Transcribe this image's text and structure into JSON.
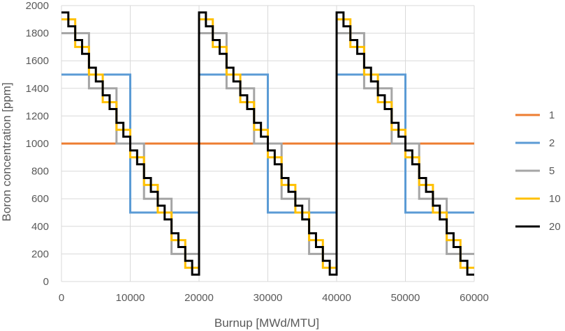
{
  "chart_data": {
    "type": "line",
    "title": "",
    "xlabel": "Burnup [MWd/MTU]",
    "ylabel": "Boron concentration [ppm]",
    "xlim": [
      0,
      60000
    ],
    "ylim": [
      0,
      2000
    ],
    "xticks": [
      0,
      10000,
      20000,
      30000,
      40000,
      50000,
      60000
    ],
    "yticks": [
      0,
      200,
      400,
      600,
      800,
      1000,
      1200,
      1400,
      1600,
      1800,
      2000
    ],
    "grid": true,
    "legend_position": "right",
    "series": [
      {
        "name": "1",
        "color": "#ED7D31",
        "x": [
          0,
          60000
        ],
        "y": [
          1000,
          1000
        ]
      },
      {
        "name": "2",
        "color": "#5B9BD5",
        "x": [
          0,
          10000,
          10000,
          20000,
          20000,
          30000,
          30000,
          40000,
          40000,
          50000,
          50000,
          60000
        ],
        "y": [
          1500,
          1500,
          500,
          500,
          1500,
          1500,
          500,
          500,
          1500,
          1500,
          500,
          500
        ]
      },
      {
        "name": "5",
        "color": "#A5A5A5",
        "x": [
          0,
          4000,
          4000,
          8000,
          8000,
          12000,
          12000,
          16000,
          16000,
          20000,
          20000,
          24000,
          24000,
          28000,
          28000,
          32000,
          32000,
          36000,
          36000,
          40000,
          40000,
          44000,
          44000,
          48000,
          48000,
          52000,
          52000,
          56000,
          56000,
          60000
        ],
        "y": [
          1800,
          1800,
          1400,
          1400,
          1000,
          1000,
          600,
          600,
          200,
          200,
          1800,
          1800,
          1400,
          1400,
          1000,
          1000,
          600,
          600,
          200,
          200,
          1800,
          1800,
          1400,
          1400,
          1000,
          1000,
          600,
          600,
          200,
          200
        ]
      },
      {
        "name": "10",
        "color": "#FFC000",
        "x": [
          0,
          2000,
          2000,
          4000,
          4000,
          6000,
          6000,
          8000,
          8000,
          10000,
          10000,
          12000,
          12000,
          14000,
          14000,
          16000,
          16000,
          18000,
          18000,
          20000,
          20000,
          22000,
          22000,
          24000,
          24000,
          26000,
          26000,
          28000,
          28000,
          30000,
          30000,
          32000,
          32000,
          34000,
          34000,
          36000,
          36000,
          38000,
          38000,
          40000,
          40000,
          42000,
          42000,
          44000,
          44000,
          46000,
          46000,
          48000,
          48000,
          50000,
          50000,
          52000,
          52000,
          54000,
          54000,
          56000,
          56000,
          58000,
          58000,
          60000
        ],
        "y": [
          1900,
          1900,
          1700,
          1700,
          1500,
          1500,
          1300,
          1300,
          1100,
          1100,
          900,
          900,
          700,
          700,
          500,
          500,
          300,
          300,
          100,
          100,
          1900,
          1900,
          1700,
          1700,
          1500,
          1500,
          1300,
          1300,
          1100,
          1100,
          900,
          900,
          700,
          700,
          500,
          500,
          300,
          300,
          100,
          100,
          1900,
          1900,
          1700,
          1700,
          1500,
          1500,
          1300,
          1300,
          1100,
          1100,
          900,
          900,
          700,
          700,
          500,
          500,
          300,
          300,
          100,
          100
        ]
      },
      {
        "name": "20",
        "color": "#000000",
        "x": [
          0,
          1000,
          1000,
          2000,
          2000,
          3000,
          3000,
          4000,
          4000,
          5000,
          5000,
          6000,
          6000,
          7000,
          7000,
          8000,
          8000,
          9000,
          9000,
          10000,
          10000,
          11000,
          11000,
          12000,
          12000,
          13000,
          13000,
          14000,
          14000,
          15000,
          15000,
          16000,
          16000,
          17000,
          17000,
          18000,
          18000,
          19000,
          19000,
          20000,
          20000,
          21000,
          21000,
          22000,
          22000,
          23000,
          23000,
          24000,
          24000,
          25000,
          25000,
          26000,
          26000,
          27000,
          27000,
          28000,
          28000,
          29000,
          29000,
          30000,
          30000,
          31000,
          31000,
          32000,
          32000,
          33000,
          33000,
          34000,
          34000,
          35000,
          35000,
          36000,
          36000,
          37000,
          37000,
          38000,
          38000,
          39000,
          39000,
          40000,
          40000,
          41000,
          41000,
          42000,
          42000,
          43000,
          43000,
          44000,
          44000,
          45000,
          45000,
          46000,
          46000,
          47000,
          47000,
          48000,
          48000,
          49000,
          49000,
          50000,
          50000,
          51000,
          51000,
          52000,
          52000,
          53000,
          53000,
          54000,
          54000,
          55000,
          55000,
          56000,
          56000,
          57000,
          57000,
          58000,
          58000,
          59000,
          59000,
          60000
        ],
        "y": [
          1950,
          1950,
          1850,
          1850,
          1750,
          1750,
          1650,
          1650,
          1550,
          1550,
          1450,
          1450,
          1350,
          1350,
          1250,
          1250,
          1150,
          1150,
          1050,
          1050,
          950,
          950,
          850,
          850,
          750,
          750,
          650,
          650,
          550,
          550,
          450,
          450,
          350,
          350,
          250,
          250,
          150,
          150,
          50,
          50,
          1950,
          1950,
          1850,
          1850,
          1750,
          1750,
          1650,
          1650,
          1550,
          1550,
          1450,
          1450,
          1350,
          1350,
          1250,
          1250,
          1150,
          1150,
          1050,
          1050,
          950,
          950,
          850,
          850,
          750,
          750,
          650,
          650,
          550,
          550,
          450,
          450,
          350,
          350,
          250,
          250,
          150,
          150,
          50,
          50,
          1950,
          1950,
          1850,
          1850,
          1750,
          1750,
          1650,
          1650,
          1550,
          1550,
          1450,
          1450,
          1350,
          1350,
          1250,
          1250,
          1150,
          1150,
          1050,
          1050,
          950,
          950,
          850,
          850,
          750,
          750,
          650,
          650,
          550,
          550,
          450,
          450,
          350,
          350,
          250,
          250,
          150,
          150,
          50,
          50
        ]
      }
    ]
  }
}
